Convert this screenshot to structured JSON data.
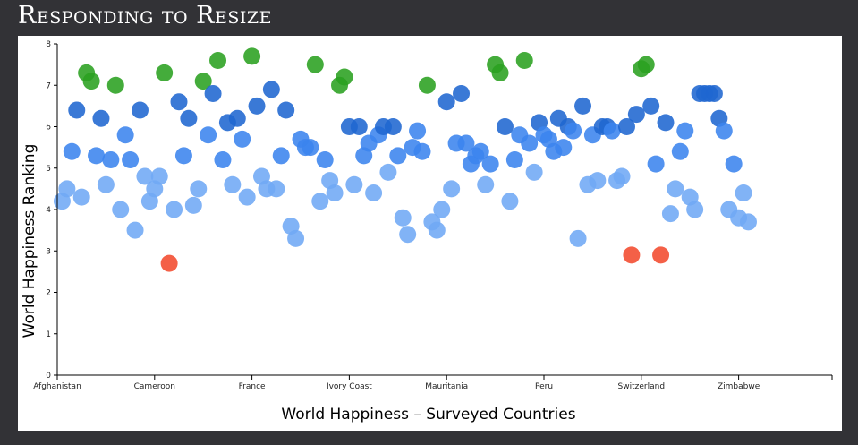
{
  "page": {
    "title": "Responding to Resize"
  },
  "chart_data": {
    "type": "scatter",
    "title": "",
    "xlabel": "World Happiness – Surveyed Countries",
    "ylabel": "World Happiness Ranking",
    "ylim": [
      0,
      8
    ],
    "y_ticks": [
      0,
      1,
      2,
      3,
      4,
      5,
      6,
      7,
      8
    ],
    "x_count": 155,
    "x_tick_labels": [
      {
        "index": 0,
        "label": "Afghanistan"
      },
      {
        "index": 20,
        "label": "Cameroon"
      },
      {
        "index": 40,
        "label": "France"
      },
      {
        "index": 60,
        "label": "Ivory Coast"
      },
      {
        "index": 80,
        "label": "Mauritania"
      },
      {
        "index": 100,
        "label": "Peru"
      },
      {
        "index": 120,
        "label": "Switzerland"
      },
      {
        "index": 140,
        "label": "Zimbabwe"
      }
    ],
    "grid": false,
    "color_scale": {
      "low": "#f24a2e",
      "low_mid": "#70a9f5",
      "mid": "#3b84ee",
      "high_mid": "#1f67d0",
      "high": "#2aa020"
    },
    "points": [
      [
        1,
        4.2
      ],
      [
        2,
        4.5
      ],
      [
        3,
        5.4
      ],
      [
        4,
        6.4
      ],
      [
        5,
        4.3
      ],
      [
        6,
        7.3
      ],
      [
        7,
        7.1
      ],
      [
        8,
        5.3
      ],
      [
        9,
        6.2
      ],
      [
        10,
        4.6
      ],
      [
        11,
        5.2
      ],
      [
        12,
        7.0
      ],
      [
        13,
        4.0
      ],
      [
        14,
        5.8
      ],
      [
        15,
        5.2
      ],
      [
        16,
        3.5
      ],
      [
        17,
        6.4
      ],
      [
        18,
        4.8
      ],
      [
        19,
        4.2
      ],
      [
        20,
        4.5
      ],
      [
        21,
        4.8
      ],
      [
        22,
        7.3
      ],
      [
        23,
        2.7
      ],
      [
        24,
        4.0
      ],
      [
        25,
        6.6
      ],
      [
        26,
        5.3
      ],
      [
        27,
        6.2
      ],
      [
        28,
        4.1
      ],
      [
        29,
        4.5
      ],
      [
        30,
        7.1
      ],
      [
        31,
        5.8
      ],
      [
        32,
        6.8
      ],
      [
        33,
        7.6
      ],
      [
        34,
        5.2
      ],
      [
        35,
        6.1
      ],
      [
        36,
        4.6
      ],
      [
        37,
        6.2
      ],
      [
        38,
        5.7
      ],
      [
        39,
        4.3
      ],
      [
        40,
        7.7
      ],
      [
        41,
        6.5
      ],
      [
        42,
        4.8
      ],
      [
        43,
        4.5
      ],
      [
        44,
        6.9
      ],
      [
        45,
        4.5
      ],
      [
        46,
        5.3
      ],
      [
        47,
        6.4
      ],
      [
        48,
        3.6
      ],
      [
        49,
        3.3
      ],
      [
        50,
        5.7
      ],
      [
        51,
        5.5
      ],
      [
        52,
        5.5
      ],
      [
        53,
        7.5
      ],
      [
        54,
        4.2
      ],
      [
        55,
        5.2
      ],
      [
        56,
        4.7
      ],
      [
        57,
        4.4
      ],
      [
        58,
        7.0
      ],
      [
        59,
        7.2
      ],
      [
        60,
        6.0
      ],
      [
        61,
        4.6
      ],
      [
        62,
        6.0
      ],
      [
        63,
        5.3
      ],
      [
        64,
        5.6
      ],
      [
        65,
        4.4
      ],
      [
        66,
        5.8
      ],
      [
        67,
        6.0
      ],
      [
        68,
        4.9
      ],
      [
        69,
        6.0
      ],
      [
        70,
        5.3
      ],
      [
        71,
        3.8
      ],
      [
        72,
        3.4
      ],
      [
        73,
        5.5
      ],
      [
        74,
        5.9
      ],
      [
        75,
        5.4
      ],
      [
        76,
        7.0
      ],
      [
        77,
        3.7
      ],
      [
        78,
        3.5
      ],
      [
        79,
        4.0
      ],
      [
        80,
        6.6
      ],
      [
        81,
        4.5
      ],
      [
        82,
        5.6
      ],
      [
        83,
        6.8
      ],
      [
        84,
        5.6
      ],
      [
        85,
        5.1
      ],
      [
        86,
        5.3
      ],
      [
        87,
        5.4
      ],
      [
        88,
        4.6
      ],
      [
        89,
        5.1
      ],
      [
        90,
        7.5
      ],
      [
        91,
        7.3
      ],
      [
        92,
        6.0
      ],
      [
        93,
        4.2
      ],
      [
        94,
        5.2
      ],
      [
        95,
        5.8
      ],
      [
        96,
        7.6
      ],
      [
        97,
        5.6
      ],
      [
        98,
        4.9
      ],
      [
        99,
        6.1
      ],
      [
        100,
        5.8
      ],
      [
        101,
        5.7
      ],
      [
        102,
        5.4
      ],
      [
        103,
        6.2
      ],
      [
        104,
        5.5
      ],
      [
        105,
        6.0
      ],
      [
        106,
        5.9
      ],
      [
        107,
        3.3
      ],
      [
        108,
        6.5
      ],
      [
        109,
        4.6
      ],
      [
        110,
        5.8
      ],
      [
        111,
        4.7
      ],
      [
        112,
        6.0
      ],
      [
        113,
        6.0
      ],
      [
        114,
        5.9
      ],
      [
        115,
        4.7
      ],
      [
        116,
        4.8
      ],
      [
        117,
        6.0
      ],
      [
        118,
        2.9
      ],
      [
        119,
        6.3
      ],
      [
        120,
        7.4
      ],
      [
        121,
        7.5
      ],
      [
        122,
        6.5
      ],
      [
        123,
        5.1
      ],
      [
        124,
        2.9
      ],
      [
        125,
        6.1
      ],
      [
        126,
        3.9
      ],
      [
        127,
        4.5
      ],
      [
        128,
        5.4
      ],
      [
        129,
        5.9
      ],
      [
        130,
        4.3
      ],
      [
        131,
        4.0
      ],
      [
        132,
        6.8
      ],
      [
        133,
        6.8
      ],
      [
        134,
        6.8
      ],
      [
        135,
        6.8
      ],
      [
        136,
        6.2
      ],
      [
        137,
        5.9
      ],
      [
        138,
        4.0
      ],
      [
        139,
        5.1
      ],
      [
        140,
        3.8
      ],
      [
        141,
        4.4
      ],
      [
        142,
        3.7
      ]
    ]
  }
}
